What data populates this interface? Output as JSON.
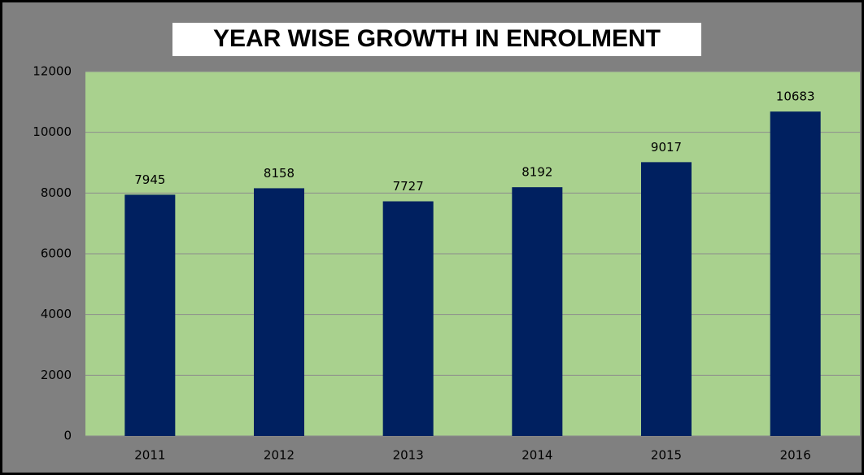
{
  "chart_data": {
    "type": "bar",
    "title": "YEAR WISE GROWTH IN ENROLMENT",
    "categories": [
      "2011",
      "2012",
      "2013",
      "2014",
      "2015",
      "2016"
    ],
    "values": [
      7945,
      8158,
      7727,
      8192,
      9017,
      10683
    ],
    "color": "#002060",
    "ylim": [
      0,
      12000
    ],
    "yticks": [
      0,
      2000,
      4000,
      6000,
      8000,
      10000,
      12000
    ],
    "grid": true
  }
}
